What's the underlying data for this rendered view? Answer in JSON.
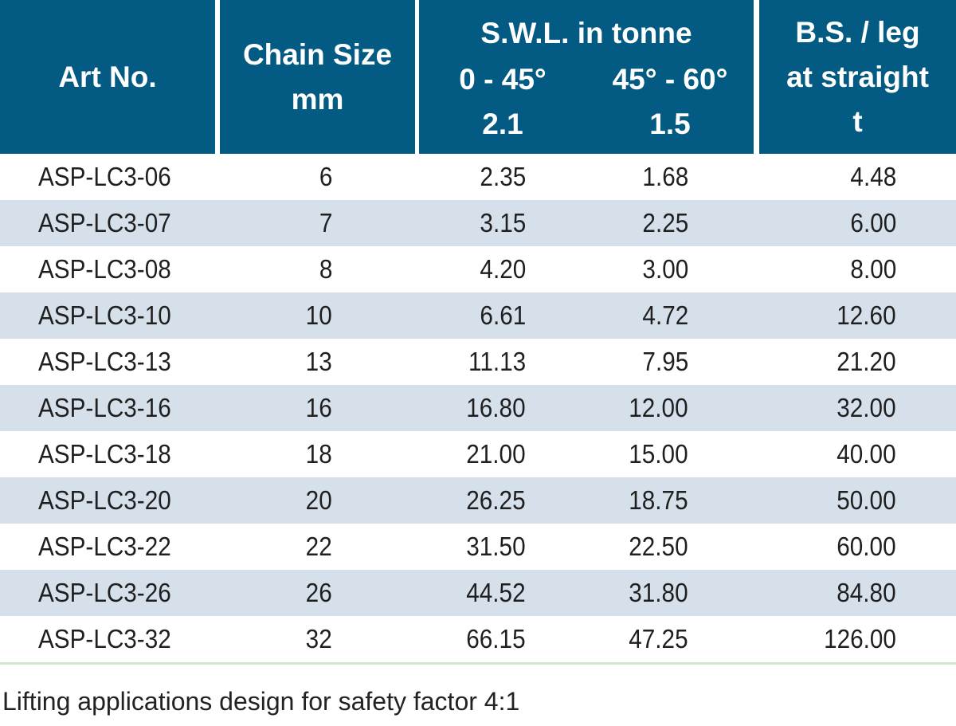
{
  "header": {
    "art_no": "Art No.",
    "chain_size_l1": "Chain Size",
    "chain_size_l2": "mm",
    "swl_title": "S.W.L. in tonne",
    "swl_a_angle": "0 - 45°",
    "swl_a_value": "2.1",
    "swl_b_angle": "45° - 60°",
    "swl_b_value": "1.5",
    "bs_l1": "B.S. / leg",
    "bs_l2": "at straight",
    "bs_l3": "t"
  },
  "rows": [
    {
      "art": "ASP-LC3-06",
      "chain": "6",
      "a": "2.35",
      "b": "1.68",
      "bs": "4.48"
    },
    {
      "art": "ASP-LC3-07",
      "chain": "7",
      "a": "3.15",
      "b": "2.25",
      "bs": "6.00"
    },
    {
      "art": "ASP-LC3-08",
      "chain": "8",
      "a": "4.20",
      "b": "3.00",
      "bs": "8.00"
    },
    {
      "art": "ASP-LC3-10",
      "chain": "10",
      "a": "6.61",
      "b": "4.72",
      "bs": "12.60"
    },
    {
      "art": "ASP-LC3-13",
      "chain": "13",
      "a": "11.13",
      "b": "7.95",
      "bs": "21.20"
    },
    {
      "art": "ASP-LC3-16",
      "chain": "16",
      "a": "16.80",
      "b": "12.00",
      "bs": "32.00"
    },
    {
      "art": "ASP-LC3-18",
      "chain": "18",
      "a": "21.00",
      "b": "15.00",
      "bs": "40.00"
    },
    {
      "art": "ASP-LC3-20",
      "chain": "20",
      "a": "26.25",
      "b": "18.75",
      "bs": "50.00"
    },
    {
      "art": "ASP-LC3-22",
      "chain": "22",
      "a": "31.50",
      "b": "22.50",
      "bs": "60.00"
    },
    {
      "art": "ASP-LC3-26",
      "chain": "26",
      "a": "44.52",
      "b": "31.80",
      "bs": "84.80"
    },
    {
      "art": "ASP-LC3-32",
      "chain": "32",
      "a": "66.15",
      "b": "47.25",
      "bs": "126.00"
    }
  ],
  "footnote": "Lifting applications design for safety factor 4:1",
  "colors": {
    "header_bg": "#035a82",
    "header_text": "#ffffff",
    "row_alt_bg": "#d5e0ea",
    "rule": "#d2e7cf"
  }
}
